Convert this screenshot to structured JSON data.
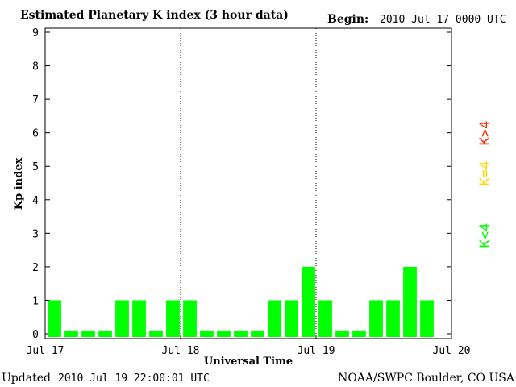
{
  "header": {
    "title": "Estimated Planetary K index (3 hour data)",
    "begin_label": "Begin:",
    "begin_value": "2010 Jul 17 0000 UTC"
  },
  "footer": {
    "updated_label": "Updated",
    "updated_value": "2010 Jul 19 22:00:01 UTC",
    "source": "NOAA/SWPC Boulder, CO USA"
  },
  "legend": [
    {
      "label": "K>4",
      "color": "#ff2a00"
    },
    {
      "label": "K=4",
      "color": "#ffd700"
    },
    {
      "label": "K<4",
      "color": "#00ff00"
    }
  ],
  "chart_data": {
    "type": "bar",
    "title": "Estimated Planetary K index (3 hour data)",
    "xlabel": "Universal Time",
    "ylabel": "Kp index",
    "ylim": [
      0,
      9
    ],
    "yticks": [
      0,
      1,
      2,
      3,
      4,
      5,
      6,
      7,
      8,
      9
    ],
    "xtick_labels": [
      "Jul 17",
      "Jul 18",
      "Jul 19",
      "Jul 20"
    ],
    "day_separators": [
      "Jul 18",
      "Jul 19"
    ],
    "bar_color": "#00ff00",
    "values": [
      1,
      0,
      0,
      0,
      1,
      1,
      0,
      1,
      1,
      0,
      0,
      0,
      0,
      1,
      1,
      2,
      1,
      0,
      0,
      1,
      1,
      2,
      1
    ],
    "zero_bar_height": 0.1
  }
}
